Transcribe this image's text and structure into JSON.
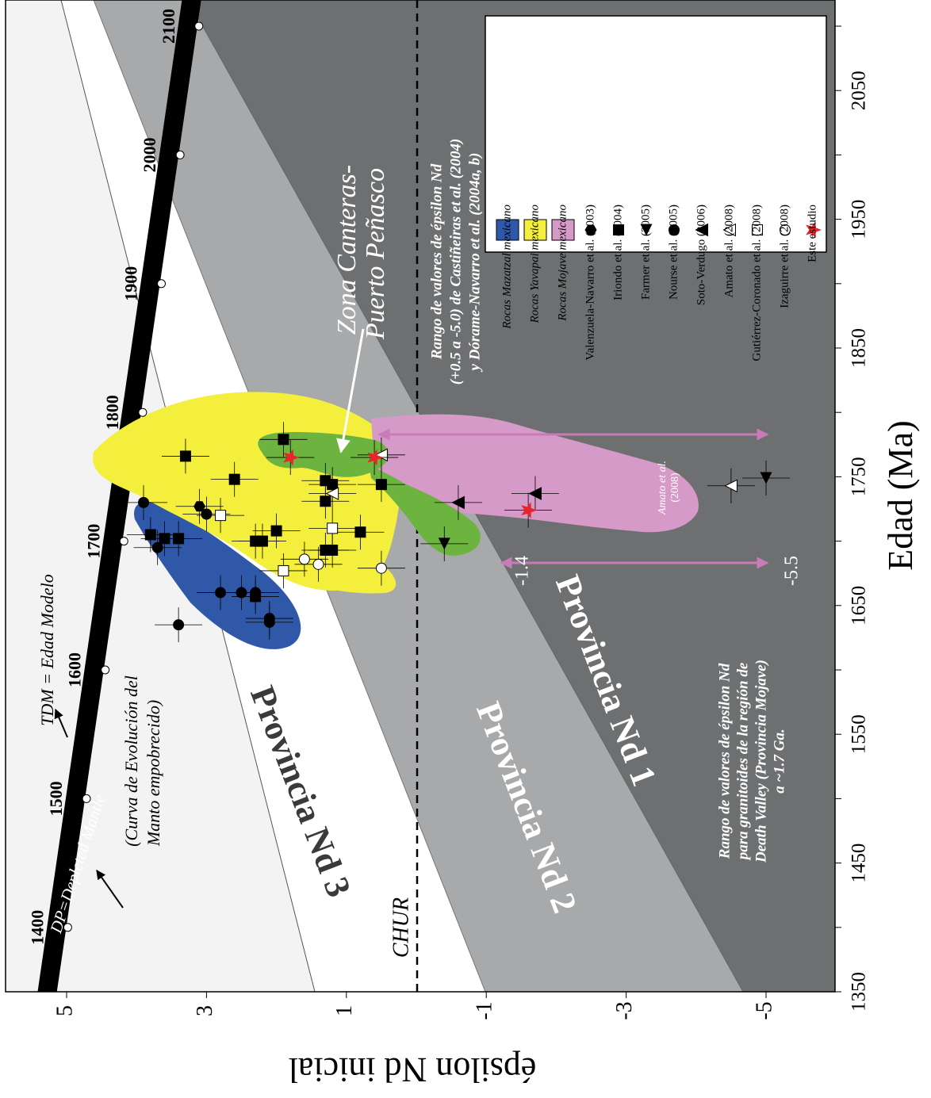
{
  "chart_data": {
    "type": "scatter",
    "orientation": "rotated-90",
    "xlabel": "Edad (Ma)",
    "ylabel": "épsilon Nd inicial",
    "xlim": [
      1350,
      2120
    ],
    "ylim": [
      -6,
      6
    ],
    "x_ticks": [
      1350,
      1450,
      1550,
      1650,
      1750,
      1850,
      1950,
      2050
    ],
    "x_ticks_minor": [
      1400,
      1500,
      1600,
      1700,
      1800,
      1900,
      2000,
      2100
    ],
    "y_ticks": [
      5,
      3,
      1,
      -1,
      -3,
      -5
    ],
    "dm_curve": {
      "label": "DP=Depleted Mantle",
      "points": [
        [
          1350,
          5.3
        ],
        [
          2100,
          7.0
        ]
      ],
      "tick_labels": [
        {
          "age": 1400,
          "label": "1400",
          "eps": 4.83
        },
        {
          "age": 1500,
          "label": "1500",
          "eps": 4.55
        },
        {
          "age": 1600,
          "label": "1600",
          "eps": 4.35
        },
        {
          "age": 1700,
          "label": "1700",
          "eps": 4.05
        },
        {
          "age": 1800,
          "label": "1800",
          "eps": 3.85
        },
        {
          "age": 1900,
          "label": "1900",
          "eps": 3.75
        },
        {
          "age": 2000,
          "label": "2000",
          "eps": 3.55
        },
        {
          "age": 2100,
          "label": "2100",
          "eps": 3.35
        }
      ]
    },
    "chur": {
      "label": "CHUR",
      "eps": 0
    },
    "annotations": {
      "tdm": "T<sub>DM</sub> = Edad Modelo",
      "tdm_text": "TDM = Edad Modelo",
      "curva_line1": "(Curva de Evolución del",
      "curva_line2": "Manto empobrecido)",
      "zona_line1": "Zona Canteras-",
      "zona_line2": "Puerto Peñasco",
      "rango1_line1": "Rango de valores de épsilon Nd",
      "rango1_line2": "(+0.5 a -5.0) de Castiñeiras et al. (2004)",
      "rango1_line3": "y Dórame-Navarro et al. (2004a, b)",
      "rango2_line1": "Rango de valores de épsilon Nd",
      "rango2_line2": "para granitoides de la región de",
      "rango2_line3": "Death Valley (Provincia Mojave)",
      "rango2_line4": "a ~1.7 Ga.",
      "range_min": "-1.4",
      "range_max": "-5.5",
      "amato_label_line1": "Amato et al.",
      "amato_label_line2": "(2008)"
    },
    "provinces": [
      "Provincia Nd 3",
      "Provincia Nd 2",
      "Provincia Nd 1"
    ],
    "legend": {
      "placement": "top-right",
      "items": [
        {
          "symbol": "swatch",
          "color": "#2f58a8",
          "label": "Rocas Mazatzal mexicano"
        },
        {
          "symbol": "swatch",
          "color": "#f4ef3c",
          "label": "Rocas Yavapai mexicano"
        },
        {
          "symbol": "swatch",
          "color": "#d69ac8",
          "label": "Rocas Mojave mexicano"
        },
        {
          "symbol": "hexagon",
          "color": "#000000",
          "label": "Valenzuela-Navarro et al. (2003)"
        },
        {
          "symbol": "square",
          "color": "#000000",
          "label": "Iriondo et al. (2004)"
        },
        {
          "symbol": "tri-right",
          "color": "#000000",
          "label": "Farmer et al. (2005)"
        },
        {
          "symbol": "circle",
          "color": "#000000",
          "label": "Nourse et al. (2005)"
        },
        {
          "symbol": "tri-up",
          "color": "#000000",
          "label": "Soto-Verdugo (2006)"
        },
        {
          "symbol": "tri-up-open",
          "color": "#ffffff",
          "label": "Amato et al. (2008)"
        },
        {
          "symbol": "square-open",
          "color": "#ffffff",
          "label": "Gutiérrez-Coronado et al. (2008)"
        },
        {
          "symbol": "circle-open",
          "color": "#ffffff",
          "label": "Izaguirre et al. (2008)"
        },
        {
          "symbol": "star",
          "color": "#e8262a",
          "label": "Este estudio"
        }
      ]
    },
    "series": [
      {
        "name": "Valenzuela-Navarro et al. (2003)",
        "symbol": "hexagon",
        "points": [
          [
            1727,
            3.1
          ]
        ]
      },
      {
        "name": "Iriondo et al. (2004)",
        "symbol": "square",
        "points": [
          [
            1779,
            1.9
          ],
          [
            1766,
            3.3
          ],
          [
            1748,
            2.6
          ],
          [
            1747,
            1.3
          ],
          [
            1744,
            0.5
          ],
          [
            1744,
            1.2
          ],
          [
            1731,
            1.3
          ],
          [
            1708,
            2.0
          ],
          [
            1707,
            0.8
          ],
          [
            1700,
            2.3
          ],
          [
            1700,
            2.2
          ],
          [
            1693,
            1.2
          ],
          [
            1693,
            1.3
          ],
          [
            1705,
            3.8
          ],
          [
            1702,
            3.6
          ],
          [
            1702,
            3.4
          ],
          [
            1657,
            2.3
          ]
        ]
      },
      {
        "name": "Farmer et al. (2005)",
        "symbol": "tri-right",
        "points": [
          [
            1749,
            -5.0
          ],
          [
            1698,
            -0.4
          ]
        ]
      },
      {
        "name": "Nourse et al. (2005)",
        "symbol": "circle",
        "points": [
          [
            1730,
            3.9
          ],
          [
            1721,
            3.0
          ],
          [
            1695,
            3.7
          ],
          [
            1660,
            2.8
          ],
          [
            1660,
            2.5
          ],
          [
            1660,
            2.3
          ],
          [
            1640,
            2.1
          ],
          [
            1637,
            2.1
          ],
          [
            1635,
            3.4
          ]
        ]
      },
      {
        "name": "Soto-Verdugo (2006)",
        "symbol": "tri-up",
        "points": [
          [
            1737,
            -1.7
          ],
          [
            1730,
            -0.6
          ]
        ]
      },
      {
        "name": "Amato et al. (2008)",
        "symbol": "tri-up-open",
        "points": [
          [
            1767,
            0.5
          ],
          [
            1737,
            1.2
          ],
          [
            1743,
            -4.5
          ]
        ]
      },
      {
        "name": "Gutiérrez-Coronado et al. (2008)",
        "symbol": "square-open",
        "points": [
          [
            1720,
            2.8
          ],
          [
            1710,
            1.2
          ],
          [
            1677,
            1.9
          ]
        ]
      },
      {
        "name": "Izaguirre et al. (2008)",
        "symbol": "circle-open",
        "points": [
          [
            1686,
            1.6
          ],
          [
            1682,
            1.4
          ],
          [
            1679,
            0.5
          ]
        ]
      },
      {
        "name": "Este estudio",
        "symbol": "star",
        "points": [
          [
            1765,
            1.8
          ],
          [
            1765,
            0.6
          ],
          [
            1724,
            -1.6
          ]
        ]
      }
    ],
    "colors": {
      "mazatzal": "#2f58a8",
      "yavapai": "#f4ef3c",
      "mojave": "#d69ac8",
      "canteras": "#6db33f",
      "prov1": "#6d6f71",
      "prov2": "#a8a9ab",
      "prov3": "#ffffff",
      "above_dm": "#f3f3f3",
      "range_arrow": "#c97bb8",
      "star": "#e8262a"
    }
  }
}
